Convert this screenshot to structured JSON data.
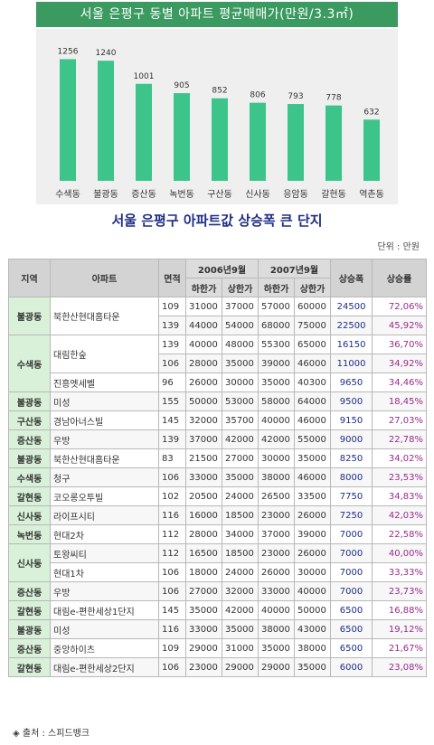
{
  "chart_data": {
    "type": "bar",
    "title": "서울 은평구 동별 아파트 평균매매가(만원/3.3㎡)",
    "categories": [
      "수색동",
      "불광동",
      "증산동",
      "녹번동",
      "구산동",
      "신사동",
      "응암동",
      "갈현동",
      "역촌동"
    ],
    "values": [
      1256,
      1240,
      1001,
      905,
      852,
      806,
      793,
      778,
      632
    ],
    "ylim": [
      0,
      1400
    ],
    "grid": false,
    "bar_color": "#3dc48a"
  },
  "table": {
    "title": "서울 은평구 아파트값 상승폭 큰 단지",
    "unit": "단위 : 만원",
    "headers": {
      "region": "지역",
      "apt": "아파트",
      "area": "면적",
      "period1": "2006년9월",
      "period2": "2007년9월",
      "low": "하한가",
      "high": "상한가",
      "rise": "상승폭",
      "rate": "상승률"
    },
    "rows": [
      {
        "region": "불광동",
        "apt": "북한산현대홈타운",
        "area": "109",
        "v1": "31000",
        "v2": "37000",
        "v3": "57000",
        "v4": "60000",
        "rise": "24500",
        "rate": "72,06%"
      },
      {
        "region": "",
        "apt": "",
        "area": "139",
        "v1": "44000",
        "v2": "54000",
        "v3": "68000",
        "v4": "75000",
        "rise": "22500",
        "rate": "45,92%"
      },
      {
        "region": "수색동",
        "apt": "대림한숲",
        "area": "139",
        "v1": "40000",
        "v2": "48000",
        "v3": "55300",
        "v4": "65000",
        "rise": "16150",
        "rate": "36,70%"
      },
      {
        "region": "",
        "apt": "",
        "area": "106",
        "v1": "28000",
        "v2": "35000",
        "v3": "39000",
        "v4": "46000",
        "rise": "11000",
        "rate": "34,92%"
      },
      {
        "region": "",
        "apt": "진흥엣세벨",
        "area": "96",
        "v1": "26000",
        "v2": "30000",
        "v3": "35000",
        "v4": "40300",
        "rise": "9650",
        "rate": "34,46%"
      },
      {
        "region": "불광동",
        "apt": "미성",
        "area": "155",
        "v1": "50000",
        "v2": "53000",
        "v3": "58000",
        "v4": "64000",
        "rise": "9500",
        "rate": "18,45%"
      },
      {
        "region": "구산동",
        "apt": "경남아너스빌",
        "area": "145",
        "v1": "32000",
        "v2": "35700",
        "v3": "40000",
        "v4": "46000",
        "rise": "9150",
        "rate": "27,03%"
      },
      {
        "region": "증산동",
        "apt": "우방",
        "area": "139",
        "v1": "37000",
        "v2": "42000",
        "v3": "42000",
        "v4": "55000",
        "rise": "9000",
        "rate": "22,78%"
      },
      {
        "region": "불광동",
        "apt": "북한산현대홈타운",
        "area": "83",
        "v1": "21500",
        "v2": "27000",
        "v3": "30000",
        "v4": "35000",
        "rise": "8250",
        "rate": "34,02%"
      },
      {
        "region": "수색동",
        "apt": "청구",
        "area": "106",
        "v1": "33000",
        "v2": "35000",
        "v3": "38000",
        "v4": "46000",
        "rise": "8000",
        "rate": "23,53%"
      },
      {
        "region": "갈현동",
        "apt": "코오롱오투빌",
        "area": "102",
        "v1": "20500",
        "v2": "24000",
        "v3": "26500",
        "v4": "33500",
        "rise": "7750",
        "rate": "34,83%"
      },
      {
        "region": "신사동",
        "apt": "라이프시티",
        "area": "116",
        "v1": "16000",
        "v2": "18500",
        "v3": "23000",
        "v4": "26000",
        "rise": "7250",
        "rate": "42,03%"
      },
      {
        "region": "녹번동",
        "apt": "현대2차",
        "area": "112",
        "v1": "28000",
        "v2": "34000",
        "v3": "37000",
        "v4": "39000",
        "rise": "7000",
        "rate": "22,58%"
      },
      {
        "region": "신사동",
        "apt": "토왕씨티",
        "area": "112",
        "v1": "16500",
        "v2": "18500",
        "v3": "23000",
        "v4": "26000",
        "rise": "7000",
        "rate": "40,00%"
      },
      {
        "region": "",
        "apt": "현대1차",
        "area": "106",
        "v1": "18000",
        "v2": "24000",
        "v3": "26000",
        "v4": "30000",
        "rise": "7000",
        "rate": "33,33%"
      },
      {
        "region": "증산동",
        "apt": "우방",
        "area": "106",
        "v1": "27000",
        "v2": "32000",
        "v3": "33000",
        "v4": "40000",
        "rise": "7000",
        "rate": "23,73%"
      },
      {
        "region": "갈현동",
        "apt": "대림e-편한세상1단지",
        "area": "145",
        "v1": "35000",
        "v2": "42000",
        "v3": "40000",
        "v4": "50000",
        "rise": "6500",
        "rate": "16,88%"
      },
      {
        "region": "불광동",
        "apt": "미성",
        "area": "116",
        "v1": "33000",
        "v2": "35000",
        "v3": "38000",
        "v4": "43000",
        "rise": "6500",
        "rate": "19,12%"
      },
      {
        "region": "증산동",
        "apt": "중앙하이츠",
        "area": "109",
        "v1": "29000",
        "v2": "31000",
        "v3": "35000",
        "v4": "38000",
        "rise": "6500",
        "rate": "21,67%"
      },
      {
        "region": "갈현동",
        "apt": "대림e-편한세상2단지",
        "area": "106",
        "v1": "23000",
        "v2": "29000",
        "v3": "29000",
        "v4": "35000",
        "rise": "6000",
        "rate": "23,08%"
      }
    ]
  },
  "source": "◈ 출처 : 스피드뱅크"
}
